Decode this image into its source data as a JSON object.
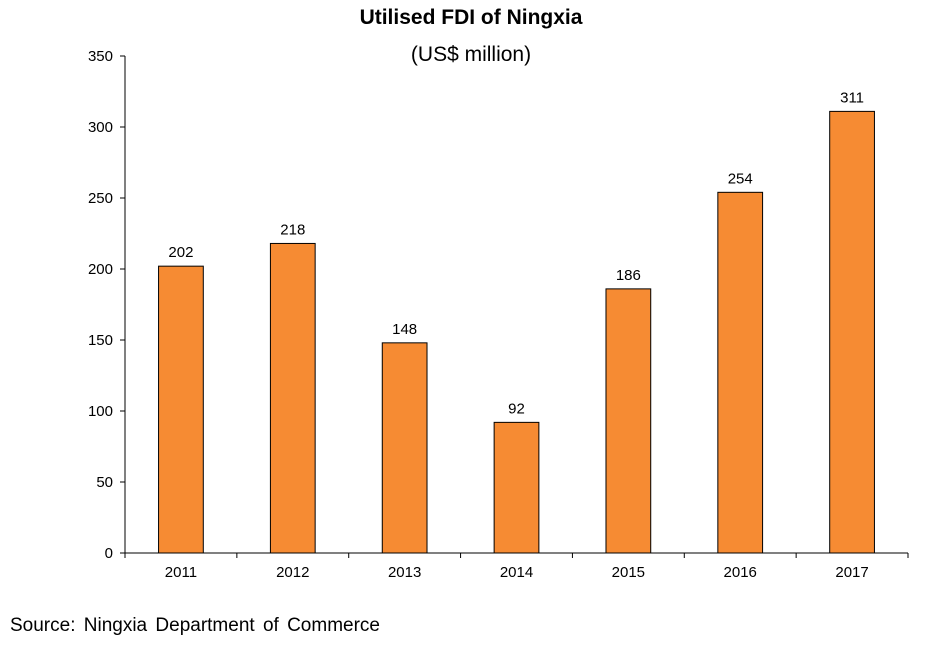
{
  "chart_data": {
    "type": "bar",
    "title": "Utilised FDI of Ningxia",
    "subtitle": "(US$ million)",
    "categories": [
      "2011",
      "2012",
      "2013",
      "2014",
      "2015",
      "2016",
      "2017"
    ],
    "values": [
      202,
      218,
      148,
      92,
      186,
      254,
      311
    ],
    "data_labels": [
      "202",
      "218",
      "148",
      "92",
      "186",
      "254",
      "311"
    ],
    "y_ticks": [
      "0",
      "50",
      "100",
      "150",
      "200",
      "250",
      "300",
      "350"
    ],
    "ylim": [
      0,
      350
    ],
    "grid": false,
    "legend": "none",
    "bar_color": "#f68b33"
  },
  "source": "Source: Ningxia Department of Commerce"
}
